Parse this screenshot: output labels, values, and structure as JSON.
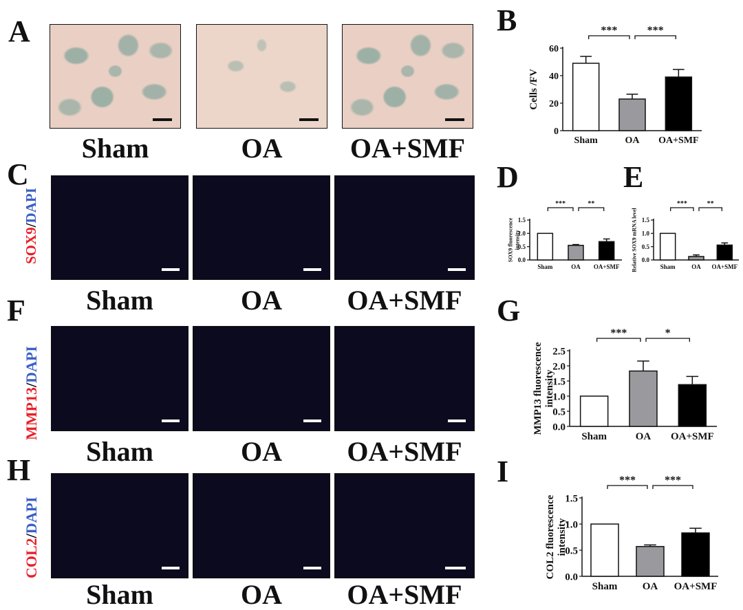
{
  "panel_letters": {
    "A": "A",
    "B": "B",
    "C": "C",
    "D": "D",
    "E": "E",
    "F": "F",
    "G": "G",
    "H": "H",
    "I": "I"
  },
  "group_labels": [
    "Sham",
    "OA",
    "OA+SMF"
  ],
  "stain_labels": {
    "C": {
      "marker": "SOX9",
      "sep": "/",
      "dapi": "DAPI"
    },
    "F": {
      "marker": "MMP13",
      "sep": "/",
      "dapi": "DAPI"
    },
    "H": {
      "marker": "COL2",
      "sep": "/",
      "dapi": "DAPI"
    }
  },
  "colors": {
    "marker": "#e8202a",
    "dapi": "#3a5fc7",
    "sham_bar": "#ffffff",
    "oa_bar": "#9a9a9e",
    "smf_bar": "#000000"
  },
  "chart_data": [
    {
      "id": "B",
      "type": "bar",
      "ylabel": "Cells /FV",
      "categories": [
        "Sham",
        "OA",
        "OA+SMF"
      ],
      "values": [
        49,
        23,
        39
      ],
      "errors": [
        5,
        3.5,
        5.5
      ],
      "ylim": [
        0,
        60
      ],
      "yticks": [
        "0",
        "20",
        "40",
        "60"
      ],
      "significance": [
        {
          "pair": [
            0,
            1
          ],
          "label": "***"
        },
        {
          "pair": [
            1,
            2
          ],
          "label": "***"
        }
      ]
    },
    {
      "id": "D",
      "type": "bar",
      "ylabel": "SOX9 fluorescence intensity",
      "categories": [
        "Sham",
        "OA",
        "OA+SMF"
      ],
      "values": [
        1.0,
        0.55,
        0.69
      ],
      "errors": [
        0,
        0.03,
        0.1
      ],
      "ylim": [
        0,
        1.5
      ],
      "yticks": [
        "0.0",
        "0.5",
        "1.0",
        "1.5"
      ],
      "significance": [
        {
          "pair": [
            0,
            1
          ],
          "label": "***"
        },
        {
          "pair": [
            1,
            2
          ],
          "label": "**"
        }
      ]
    },
    {
      "id": "E",
      "type": "bar",
      "ylabel": "Relative SOX9 mRNA level",
      "categories": [
        "Sham",
        "OA",
        "OA+SMF"
      ],
      "values": [
        1.0,
        0.13,
        0.56
      ],
      "errors": [
        0,
        0.06,
        0.08
      ],
      "ylim": [
        0,
        1.5
      ],
      "yticks": [
        "0.0",
        "0.5",
        "1.0",
        "1.5"
      ],
      "significance": [
        {
          "pair": [
            0,
            1
          ],
          "label": "***"
        },
        {
          "pair": [
            1,
            2
          ],
          "label": "**"
        }
      ]
    },
    {
      "id": "G",
      "type": "bar",
      "ylabel": "MMP13 fluorescence intensity",
      "categories": [
        "Sham",
        "OA",
        "OA+SMF"
      ],
      "values": [
        1.0,
        1.83,
        1.38
      ],
      "errors": [
        0,
        0.33,
        0.27
      ],
      "ylim": [
        0,
        2.5
      ],
      "yticks": [
        "0.0",
        "0.5",
        "1.0",
        "1.5",
        "2.0",
        "2.5"
      ],
      "significance": [
        {
          "pair": [
            0,
            1
          ],
          "label": "***"
        },
        {
          "pair": [
            1,
            2
          ],
          "label": "*"
        }
      ]
    },
    {
      "id": "I",
      "type": "bar",
      "ylabel": "COL2 fluorescence intensity",
      "categories": [
        "Sham",
        "OA",
        "OA+SMF"
      ],
      "values": [
        1.0,
        0.57,
        0.83
      ],
      "errors": [
        0,
        0.03,
        0.09
      ],
      "ylim": [
        0,
        1.5
      ],
      "yticks": [
        "0.0",
        "0.5",
        "1.0",
        "1.5"
      ],
      "significance": [
        {
          "pair": [
            0,
            1
          ],
          "label": "***"
        },
        {
          "pair": [
            1,
            2
          ],
          "label": "***"
        }
      ]
    }
  ]
}
